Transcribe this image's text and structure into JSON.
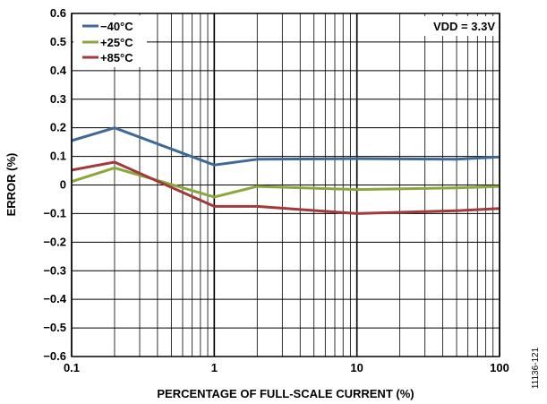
{
  "chart_data": {
    "type": "line",
    "xlabel": "PERCENTAGE OF FULL-SCALE CURRENT (%)",
    "ylabel": "ERROR (%)",
    "xscale": "log",
    "xlim": [
      0.1,
      100
    ],
    "ylim": [
      -0.6,
      0.6
    ],
    "x_ticks": [
      "0.1",
      "1",
      "10",
      "100"
    ],
    "y_ticks": [
      "0.6",
      "0.5",
      "0.4",
      "0.3",
      "0.2",
      "0.1",
      "0",
      "−0.1",
      "−0.2",
      "−0.3",
      "−0.4",
      "−0.5",
      "−0.6"
    ],
    "y_tick_values": [
      0.6,
      0.5,
      0.4,
      0.3,
      0.2,
      0.1,
      0,
      -0.1,
      -0.2,
      -0.3,
      -0.4,
      -0.5,
      -0.6
    ],
    "grid": true,
    "legend_position": "top-left",
    "annotation": "VDD = 3.3V",
    "figure_id": "11136-121",
    "series": [
      {
        "name": "−40°C",
        "color": "#3f6a98",
        "x": [
          0.1,
          0.2,
          1,
          2,
          10,
          50,
          100
        ],
        "y": [
          0.155,
          0.2,
          0.07,
          0.09,
          0.092,
          0.09,
          0.098
        ]
      },
      {
        "name": "+25°C",
        "color": "#8aa83a",
        "x": [
          0.1,
          0.2,
          1,
          2,
          10,
          50,
          100
        ],
        "y": [
          0.012,
          0.06,
          -0.042,
          -0.005,
          -0.016,
          -0.01,
          -0.005
        ]
      },
      {
        "name": "+85°C",
        "color": "#a13a3a",
        "x": [
          0.1,
          0.2,
          1,
          2,
          10,
          50,
          100
        ],
        "y": [
          0.052,
          0.08,
          -0.075,
          -0.075,
          -0.1,
          -0.09,
          -0.082
        ]
      }
    ]
  }
}
